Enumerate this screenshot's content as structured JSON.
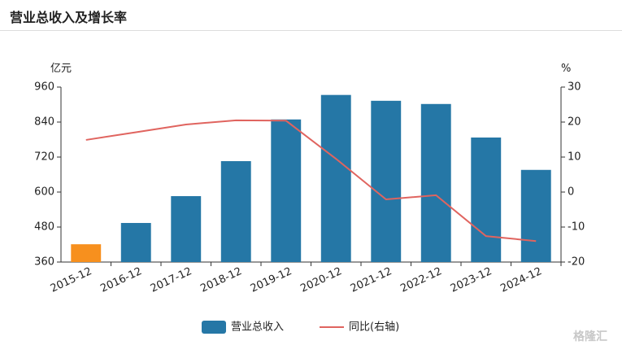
{
  "chart_data": {
    "type": "bar-line",
    "title": "营业总收入及增长率",
    "y_label": "亿元",
    "y2_label": "%",
    "categories": [
      "2015-12",
      "2016-12",
      "2017-12",
      "2018-12",
      "2019-12",
      "2020-12",
      "2021-12",
      "2022-12",
      "2023-12",
      "2024-12"
    ],
    "series": [
      {
        "name": "营业总收入",
        "type": "bar",
        "color": "#2577a6",
        "colors": [
          "#f7901e",
          "#2577a6",
          "#2577a6",
          "#2577a6",
          "#2577a6",
          "#2577a6",
          "#2577a6",
          "#2577a6",
          "#2577a6",
          "#2577a6"
        ],
        "values": [
          421,
          494,
          586,
          706,
          849,
          933,
          913,
          902,
          787,
          676
        ]
      },
      {
        "name": "同比(右轴)",
        "type": "line",
        "axis": "y2",
        "color": "#e0645f",
        "values": [
          14.9,
          17.1,
          19.3,
          20.5,
          20.4,
          9.5,
          -2.1,
          -0.9,
          -12.6,
          -14.0
        ]
      }
    ],
    "ylim": [
      360,
      960
    ],
    "yticks": [
      360,
      480,
      600,
      720,
      840,
      960
    ],
    "y2lim": [
      -20,
      30
    ],
    "y2ticks": [
      -20,
      -10,
      0,
      10,
      20,
      30
    ],
    "grid": false,
    "legend": "bottom",
    "watermark": "格隆汇"
  }
}
